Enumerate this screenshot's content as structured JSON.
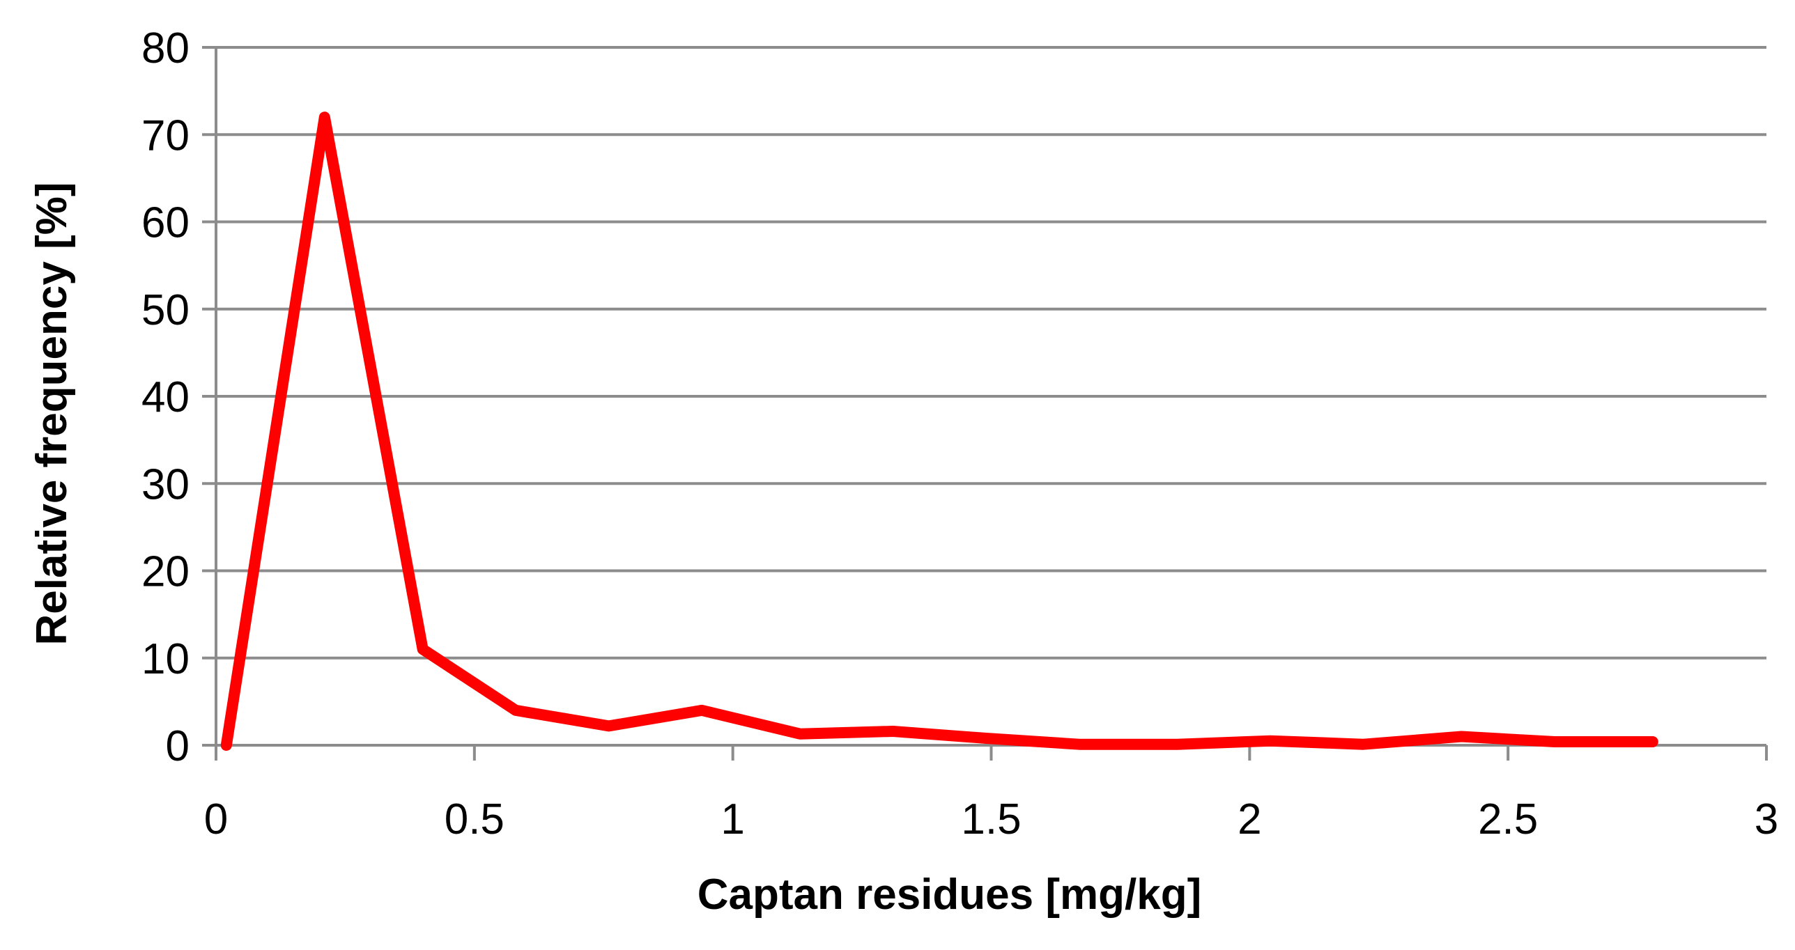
{
  "chart_data": {
    "type": "line",
    "title": "",
    "xlabel": "Captan residues [mg/kg]",
    "ylabel": "Relative frequency [%]",
    "xlim": [
      0,
      3
    ],
    "ylim": [
      0,
      80
    ],
    "x_ticks": [
      0,
      0.5,
      1,
      1.5,
      2,
      2.5,
      3
    ],
    "x_tick_labels": [
      "0",
      "0.5",
      "1",
      "1.5",
      "2",
      "2.5",
      "3"
    ],
    "y_ticks": [
      0,
      10,
      20,
      30,
      40,
      50,
      60,
      70,
      80
    ],
    "y_tick_labels": [
      "0",
      "10",
      "20",
      "30",
      "40",
      "50",
      "60",
      "70",
      "80"
    ],
    "grid": "horizontal",
    "legend": "none",
    "series": [
      {
        "color": "#ff0000",
        "x": [
          0.02,
          0.21,
          0.4,
          0.58,
          0.76,
          0.94,
          1.13,
          1.31,
          1.49,
          1.67,
          1.86,
          2.04,
          2.22,
          2.41,
          2.59,
          2.78
        ],
        "y": [
          0,
          72,
          11,
          4,
          2.2,
          4,
          1.3,
          1.6,
          0.8,
          0.1,
          0.1,
          0.5,
          0.1,
          1,
          0.4,
          0.4
        ]
      }
    ]
  }
}
